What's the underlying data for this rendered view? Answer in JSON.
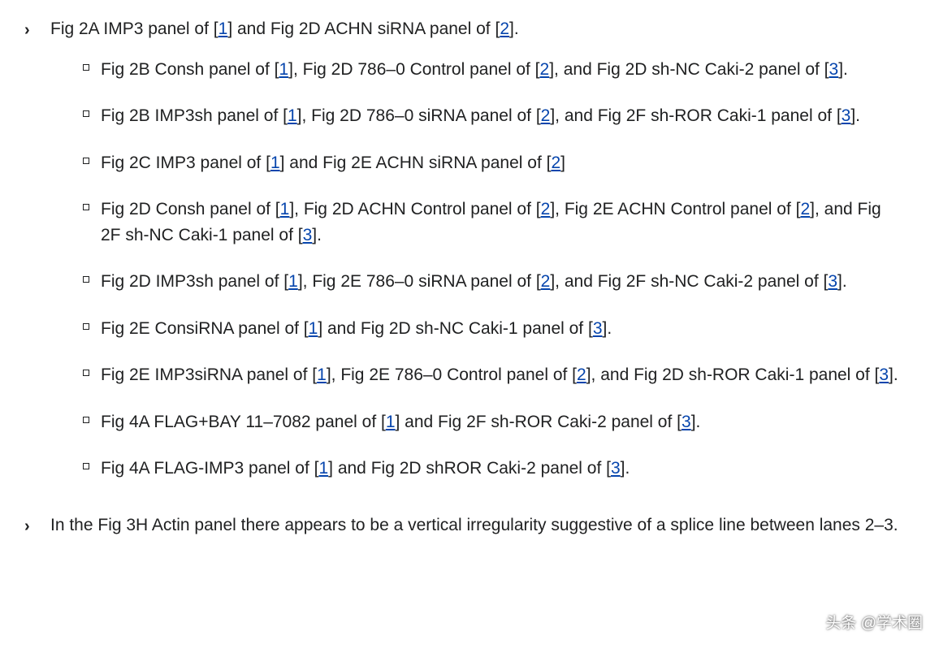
{
  "colors": {
    "text": "#202122",
    "link": "#0645ad",
    "background": "#ffffff"
  },
  "top_items": [
    {
      "segments": [
        {
          "t": "Fig 2A IMP3 panel of ["
        },
        {
          "t": "1",
          "link": true
        },
        {
          "t": "] and Fig 2D ACHN siRNA panel of ["
        },
        {
          "t": "2",
          "link": true
        },
        {
          "t": "]."
        }
      ],
      "subs": [
        [
          {
            "t": "Fig 2B Consh panel of ["
          },
          {
            "t": "1",
            "link": true
          },
          {
            "t": "], Fig 2D 786–0 Control panel of ["
          },
          {
            "t": "2",
            "link": true
          },
          {
            "t": "], and Fig 2D sh-NC Caki-2 panel of ["
          },
          {
            "t": "3",
            "link": true
          },
          {
            "t": "]."
          }
        ],
        [
          {
            "t": "Fig 2B IMP3sh panel of ["
          },
          {
            "t": "1",
            "link": true
          },
          {
            "t": "], Fig 2D 786–0 siRNA panel of ["
          },
          {
            "t": "2",
            "link": true
          },
          {
            "t": "], and Fig 2F sh-ROR Caki-1 panel of ["
          },
          {
            "t": "3",
            "link": true
          },
          {
            "t": "]."
          }
        ],
        [
          {
            "t": "Fig 2C IMP3 panel of ["
          },
          {
            "t": "1",
            "link": true
          },
          {
            "t": "] and Fig 2E ACHN siRNA panel of ["
          },
          {
            "t": "2",
            "link": true
          },
          {
            "t": "]"
          }
        ],
        [
          {
            "t": "Fig 2D Consh panel of ["
          },
          {
            "t": "1",
            "link": true
          },
          {
            "t": "], Fig 2D ACHN Control panel of ["
          },
          {
            "t": "2",
            "link": true
          },
          {
            "t": "], Fig 2E ACHN Control panel of ["
          },
          {
            "t": "2",
            "link": true
          },
          {
            "t": "], and Fig 2F sh-NC Caki-1 panel of ["
          },
          {
            "t": "3",
            "link": true
          },
          {
            "t": "]."
          }
        ],
        [
          {
            "t": "Fig 2D IMP3sh panel of ["
          },
          {
            "t": "1",
            "link": true
          },
          {
            "t": "], Fig 2E 786–0 siRNA panel of ["
          },
          {
            "t": "2",
            "link": true
          },
          {
            "t": "], and Fig 2F sh-NC Caki-2 panel of ["
          },
          {
            "t": "3",
            "link": true
          },
          {
            "t": "]."
          }
        ],
        [
          {
            "t": "Fig 2E ConsiRNA panel of ["
          },
          {
            "t": "1",
            "link": true
          },
          {
            "t": "] and Fig 2D sh-NC Caki-1 panel of ["
          },
          {
            "t": "3",
            "link": true
          },
          {
            "t": "]."
          }
        ],
        [
          {
            "t": "Fig 2E IMP3siRNA panel of ["
          },
          {
            "t": "1",
            "link": true
          },
          {
            "t": "], Fig 2E 786–0 Control panel of ["
          },
          {
            "t": "2",
            "link": true
          },
          {
            "t": "], and Fig 2D sh-ROR Caki-1 panel of ["
          },
          {
            "t": "3",
            "link": true
          },
          {
            "t": "]."
          }
        ],
        [
          {
            "t": "Fig 4A FLAG+BAY 11–7082 panel of ["
          },
          {
            "t": "1",
            "link": true
          },
          {
            "t": "] and Fig 2F sh-ROR Caki-2 panel of ["
          },
          {
            "t": "3",
            "link": true
          },
          {
            "t": "]."
          }
        ],
        [
          {
            "t": "Fig 4A FLAG-IMP3 panel of ["
          },
          {
            "t": "1",
            "link": true
          },
          {
            "t": "] and Fig 2D shROR Caki-2 panel of ["
          },
          {
            "t": "3",
            "link": true
          },
          {
            "t": "]."
          }
        ]
      ]
    },
    {
      "segments": [
        {
          "t": "In the Fig 3H Actin panel there appears to be a vertical irregularity suggestive of a splice line between lanes 2–3."
        }
      ],
      "subs": []
    }
  ],
  "watermark": "头条 @学术圈"
}
